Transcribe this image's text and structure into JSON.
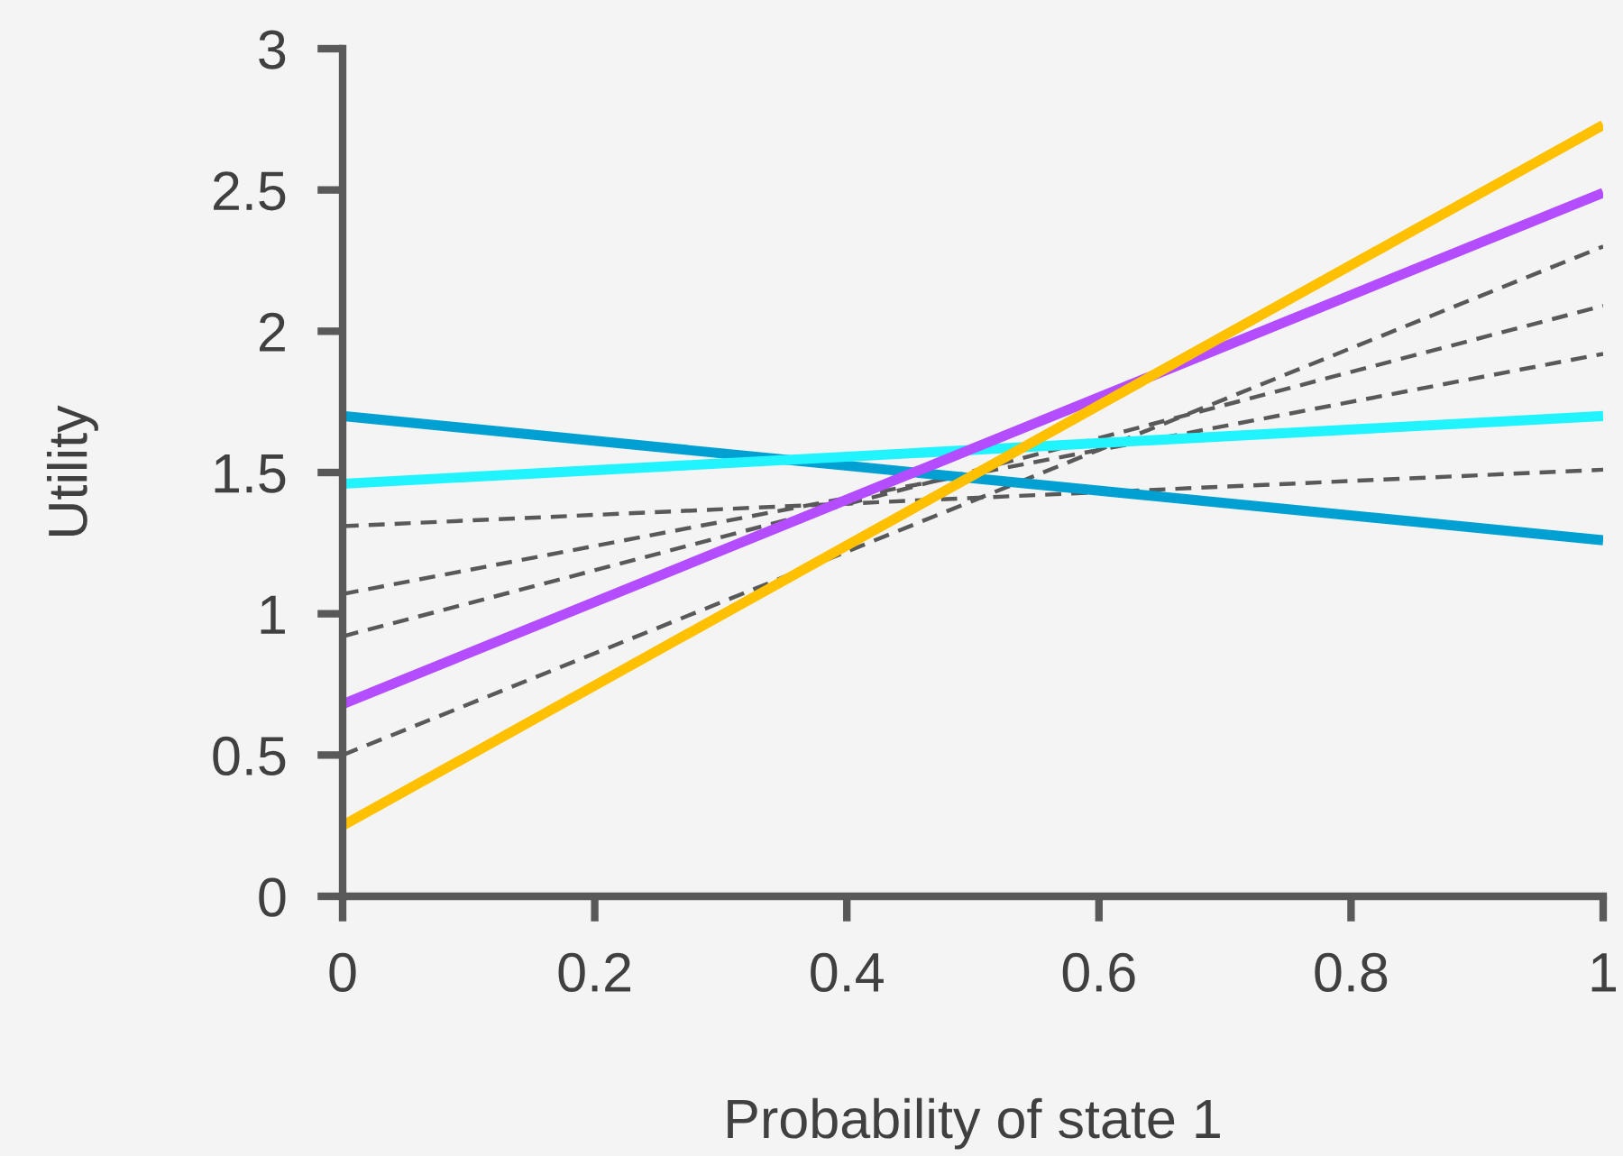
{
  "chart_data": {
    "type": "line",
    "xlabel": "Probability of state 1",
    "ylabel": "Utility",
    "x": [
      0,
      1
    ],
    "xlim": [
      0,
      1
    ],
    "xticks": [
      0,
      0.2,
      0.4,
      0.6,
      0.8,
      1
    ],
    "ylim": [
      0,
      3
    ],
    "yticks": [
      0,
      0.5,
      1,
      1.5,
      2,
      2.5,
      3
    ],
    "grid": false,
    "legend": false,
    "marker": "none",
    "series": [
      {
        "color": "#595959",
        "line_style": "dashed",
        "values": [
          1.31,
          1.51
        ]
      },
      {
        "color": "#595959",
        "line_style": "dashed",
        "values": [
          1.07,
          1.92
        ]
      },
      {
        "color": "#595959",
        "line_style": "dashed",
        "values": [
          0.92,
          2.09
        ]
      },
      {
        "color": "#595959",
        "line_style": "dashed",
        "values": [
          0.5,
          2.3
        ]
      },
      {
        "color": "#00a0d2",
        "line_style": "solid",
        "values": [
          1.7,
          1.26
        ]
      },
      {
        "color": "#22f4ff",
        "line_style": "solid",
        "values": [
          1.46,
          1.7
        ]
      },
      {
        "color": "#b44cff",
        "line_style": "solid",
        "values": [
          0.68,
          2.49
        ]
      },
      {
        "color": "#ffc000",
        "line_style": "solid",
        "values": [
          0.25,
          2.73
        ]
      }
    ]
  }
}
